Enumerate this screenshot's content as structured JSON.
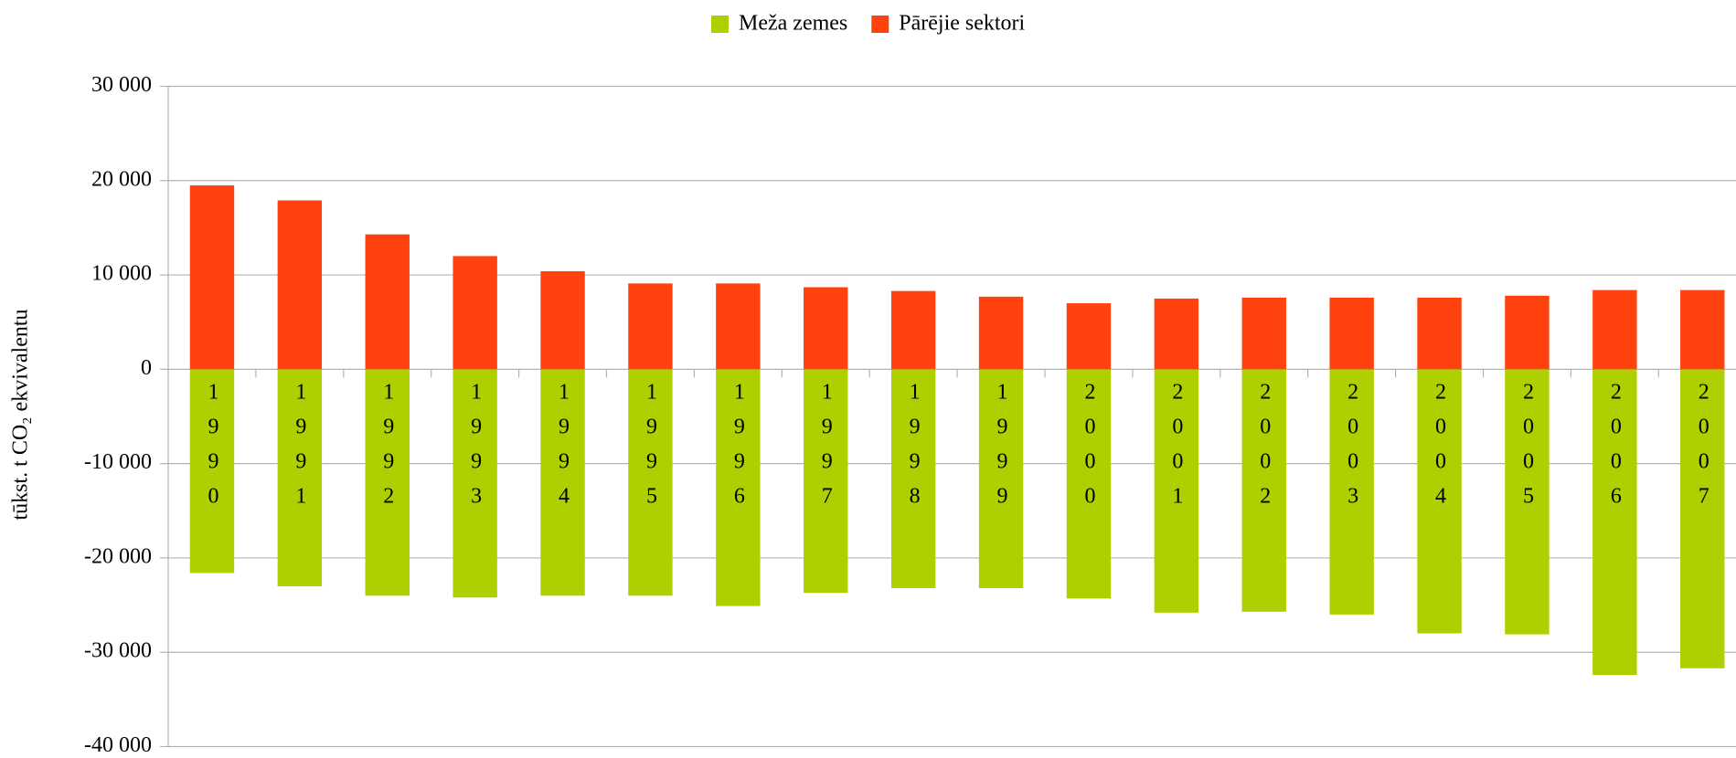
{
  "chart_data": {
    "type": "bar",
    "y_axis_label": "tūkst. t CO₂ ekvivalentu",
    "categories": [
      "1990",
      "1991",
      "1992",
      "1993",
      "1994",
      "1995",
      "1996",
      "1997",
      "1998",
      "1999",
      "2000",
      "2001",
      "2002",
      "2003",
      "2004",
      "2005",
      "2006",
      "2007"
    ],
    "series": [
      {
        "name": "Meža zemes",
        "color": "#aecf00",
        "values": [
          -21600,
          -23000,
          -24000,
          -24200,
          -24000,
          -24000,
          -25100,
          -23700,
          -23200,
          -23200,
          -24300,
          -25800,
          -25700,
          -26000,
          -28000,
          -28100,
          -32400,
          -31700
        ]
      },
      {
        "name": "Pārējie sektori",
        "color": "#ff420e",
        "values": [
          19500,
          17900,
          14300,
          12000,
          10400,
          9100,
          9100,
          8700,
          8300,
          7700,
          7000,
          7500,
          7600,
          7600,
          7600,
          7800,
          8400,
          8400
        ]
      }
    ],
    "ylim": [
      -40000,
      30000
    ],
    "yticks": [
      {
        "value": -40000,
        "label": "-40 000"
      },
      {
        "value": -30000,
        "label": "-30 000"
      },
      {
        "value": -20000,
        "label": "-20 000"
      },
      {
        "value": -10000,
        "label": "-10 000"
      },
      0,
      {
        "value": 10000,
        "label": "10 000"
      },
      {
        "value": 20000,
        "label": "20 000"
      },
      {
        "value": 30000,
        "label": "30 000"
      }
    ],
    "grid": true,
    "legend": "top"
  }
}
